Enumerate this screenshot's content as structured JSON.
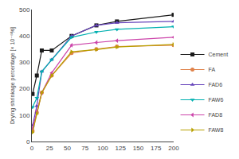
{
  "chart_data": {
    "type": "line",
    "y_label": "Drying shrinkage percentage [× 10⁻⁶%]",
    "x": [
      1,
      7,
      14,
      28,
      56,
      91,
      120,
      200
    ],
    "series": [
      {
        "name": "Cement",
        "color": "#1a1a1a",
        "marker": "square",
        "values": [
          180,
          250,
          345,
          345,
          400,
          440,
          455,
          480
        ]
      },
      {
        "name": "FA",
        "color": "#e0824a",
        "marker": "circle",
        "values": [
          40,
          110,
          185,
          250,
          335,
          350,
          360,
          365
        ]
      },
      {
        "name": "FAD6",
        "color": "#6644bb",
        "marker": "triangle-up",
        "values": [
          60,
          135,
          265,
          310,
          400,
          440,
          450,
          455
        ]
      },
      {
        "name": "FAW6",
        "color": "#00b0b0",
        "marker": "triangle-down",
        "values": [
          130,
          165,
          265,
          310,
          395,
          415,
          425,
          435
        ]
      },
      {
        "name": "FAD8",
        "color": "#cc44aa",
        "marker": "triangle-left",
        "values": [
          50,
          115,
          185,
          260,
          365,
          375,
          382,
          395
        ]
      },
      {
        "name": "FAW8",
        "color": "#b8a000",
        "marker": "triangle-right",
        "values": [
          35,
          105,
          185,
          250,
          340,
          348,
          358,
          368
        ]
      }
    ],
    "xlim": [
      0,
      200
    ],
    "ylim": [
      0,
      500
    ],
    "xticks": [
      0,
      25,
      50,
      75,
      100,
      125,
      150,
      175,
      200
    ],
    "yticks": [
      0,
      100,
      200,
      300,
      400,
      500
    ],
    "grid": false,
    "legend": "lower right"
  }
}
